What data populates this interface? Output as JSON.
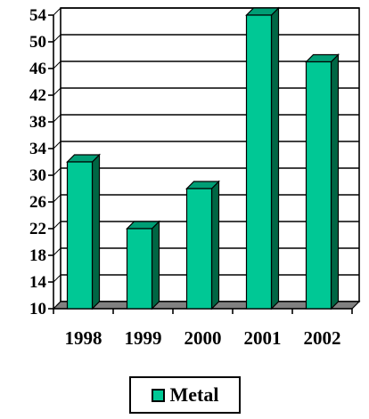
{
  "chart_data": {
    "type": "bar",
    "title": "",
    "xlabel": "",
    "ylabel": "",
    "categories": [
      "1998",
      "1999",
      "2000",
      "2001",
      "2002"
    ],
    "series": [
      {
        "name": "Metal",
        "values": [
          32,
          22,
          28,
          54,
          47
        ]
      }
    ],
    "ylim": [
      10,
      54
    ],
    "yticks": [
      10,
      14,
      18,
      22,
      26,
      30,
      34,
      38,
      42,
      46,
      50,
      54
    ],
    "grid": true,
    "style": "3d",
    "legend_position": "bottom",
    "colors": {
      "bar_front": "#00C895",
      "bar_side": "#006644",
      "bar_top": "#009E75",
      "floor": "#808080"
    }
  }
}
